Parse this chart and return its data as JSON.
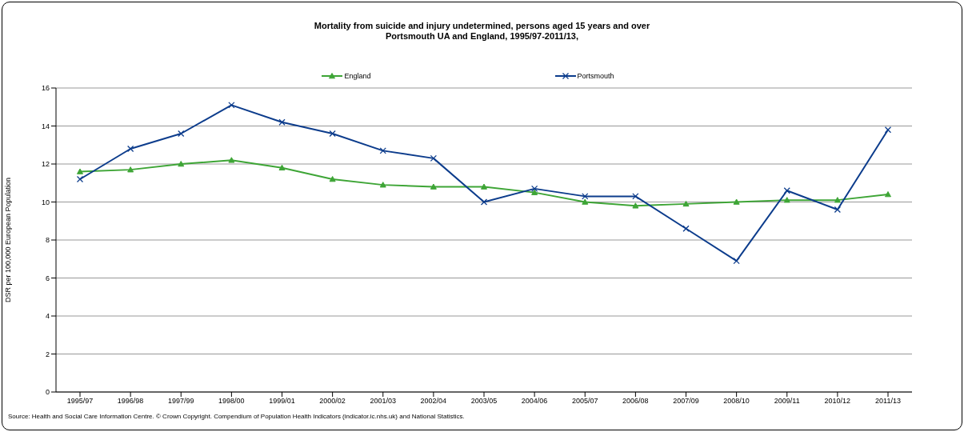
{
  "chart_data": {
    "type": "line",
    "title": "Mortality from suicide and injury undetermined, persons aged 15 years and over\nPortsmouth UA and England, 1995/97-2011/13,",
    "ylabel": "DSR per 100,000 European Population",
    "categories": [
      "1995/97",
      "1996/98",
      "1997/99",
      "1998/00",
      "1999/01",
      "2000/02",
      "2001/03",
      "2002/04",
      "2003/05",
      "2004/06",
      "2005/07",
      "2006/08",
      "2007/09",
      "2008/10",
      "2009/11",
      "2010/12",
      "2011/13"
    ],
    "series": [
      {
        "name": "England",
        "color": "#3ea536",
        "marker": "triangle",
        "values": [
          11.6,
          11.7,
          12.0,
          12.2,
          11.8,
          11.2,
          10.9,
          10.8,
          10.8,
          10.5,
          10.0,
          9.8,
          9.9,
          10.0,
          10.1,
          10.1,
          10.4
        ]
      },
      {
        "name": "Portsmouth",
        "color": "#0c3c8c",
        "marker": "cross",
        "values": [
          11.2,
          12.8,
          13.6,
          15.1,
          14.2,
          13.6,
          12.7,
          12.3,
          10.0,
          10.7,
          10.3,
          10.3,
          8.6,
          6.9,
          10.6,
          9.6,
          13.8
        ]
      }
    ],
    "ylim": [
      0,
      16
    ],
    "yticks": [
      0,
      2,
      4,
      6,
      8,
      10,
      12,
      14,
      16
    ],
    "grid": "y",
    "legend": "top",
    "annotations": [
      "Source: Health and Social Care Information Centre. © Crown Copyright. Compendium of Population Health Indicators (indicator.ic.nhs.uk) and National Statistics."
    ]
  }
}
